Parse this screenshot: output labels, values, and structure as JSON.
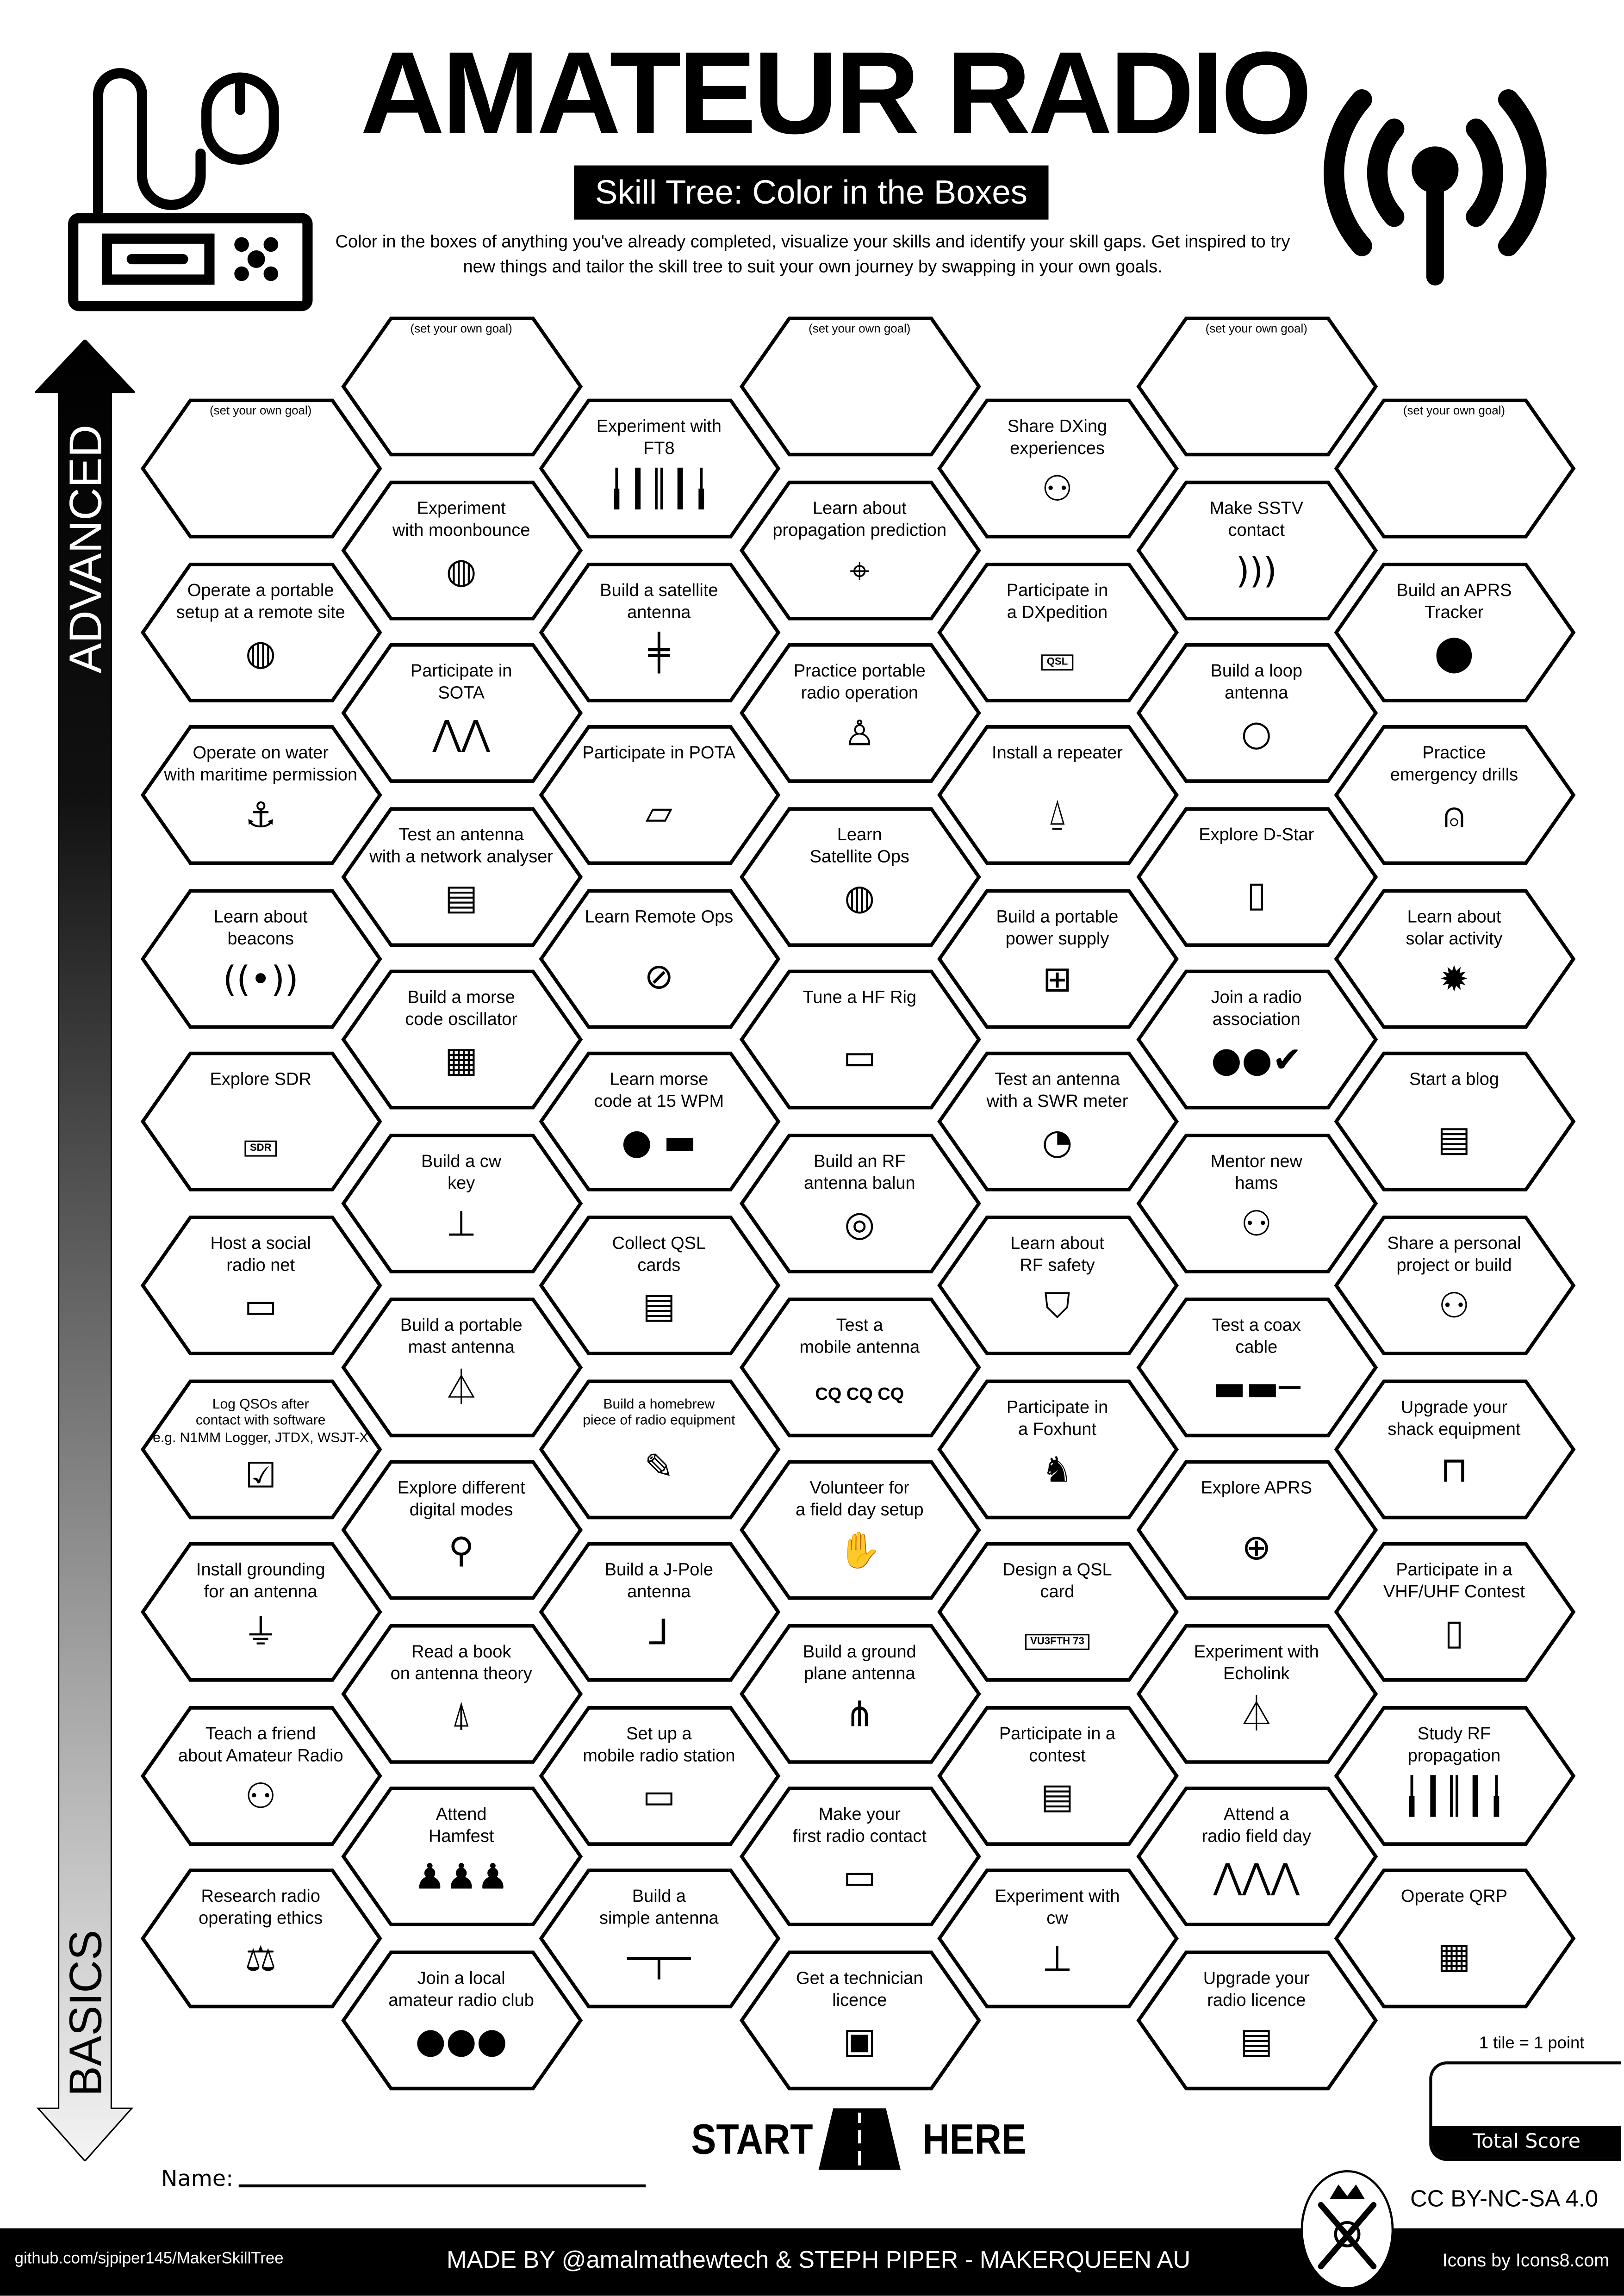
{
  "header": {
    "title": "AMATEUR RADIO",
    "subtitle": "Skill Tree: Color in the Boxes",
    "intro": "Color in the boxes of anything you've already completed, visualize your skills and identify your skill gaps.  Get inspired to try new things and tailor the skill tree to suit your own journey by swapping in your own goals."
  },
  "header_icons": {
    "left": "radio-transceiver-icon",
    "right": "radio-signal-icon"
  },
  "axis": {
    "top_label": "ADVANCED",
    "bottom_label": "BASICS"
  },
  "goal_placeholder": "(set your own goal)",
  "columns": [
    [
      {
        "label": "",
        "goal": true
      },
      {
        "label": "Operate a portable\nsetup at a remote site",
        "icon": "globe-pin-icon"
      },
      {
        "label": "Operate on water\nwith maritime permission",
        "icon": "anchor-icon"
      },
      {
        "label": "Learn about\nbeacons",
        "icon": "radio-signal-icon"
      },
      {
        "label": "Explore SDR",
        "icon": "sdr-dongle-icon",
        "icon_text": "SDR"
      },
      {
        "label": "Host a social\nradio net",
        "icon": "radio-transceiver-icon"
      },
      {
        "label": "Log QSOs after\ncontact with software\ne.g. N1MM Logger, JTDX, WSJT-X",
        "icon": "logbook-checklist-icon",
        "small": true
      },
      {
        "label": "Install grounding\nfor an antenna",
        "icon": "ground-symbol-icon"
      },
      {
        "label": "Teach a friend\nabout Amateur Radio",
        "icon": "people-at-desk-icon"
      },
      {
        "label": "Research radio\noperating ethics",
        "icon": "scales-of-justice-icon"
      }
    ],
    [
      {
        "label": "",
        "goal": true
      },
      {
        "label": "Experiment\nwith moonbounce",
        "icon": "moon-orbit-icon"
      },
      {
        "label": "Participate in\nSOTA",
        "icon": "mountains-icon"
      },
      {
        "label": "Test an antenna\nwith a network analyser",
        "icon": "network-analyser-icon"
      },
      {
        "label": "Build a morse\ncode oscillator",
        "icon": "circuit-board-icon"
      },
      {
        "label": "Build a cw\nkey",
        "icon": "morse-key-icon"
      },
      {
        "label": "Build a portable\nmast antenna",
        "icon": "mast-antenna-icon"
      },
      {
        "label": "Explore different\ndigital modes",
        "icon": "magnifier-icon"
      },
      {
        "label": "Read a book\non antenna theory",
        "icon": "antenna-tower-icon"
      },
      {
        "label": "Attend\nHamfest",
        "icon": "crowd-icon"
      },
      {
        "label": "Join a local\namateur radio club",
        "icon": "group-icon"
      }
    ],
    [
      {
        "label": "Experiment with\nFT8",
        "icon": "waveform-icon"
      },
      {
        "label": "Build a satellite\nantenna",
        "icon": "yagi-antenna-icon"
      },
      {
        "label": "Participate in POTA",
        "icon": "map-pin-icon"
      },
      {
        "label": "Learn Remote Ops",
        "icon": "compass-icon"
      },
      {
        "label": "Learn morse\ncode at 15 WPM",
        "icon": "dot-dash-icon"
      },
      {
        "label": "Collect QSL\ncards",
        "icon": "cards-stack-icon"
      },
      {
        "label": "Build a homebrew\npiece of radio equipment",
        "icon": "soldering-icon",
        "small": true
      },
      {
        "label": "Build a J-Pole\nantenna",
        "icon": "j-pole-icon"
      },
      {
        "label": "Set up a\nmobile radio station",
        "icon": "mobile-radio-icon"
      },
      {
        "label": "Build a\nsimple antenna",
        "icon": "dipole-icon"
      }
    ],
    [
      {
        "label": "",
        "goal": true
      },
      {
        "label": "Learn about\npropagation prediction",
        "icon": "telescope-icon"
      },
      {
        "label": "Practice portable\nradio operation",
        "icon": "hiker-radio-icon"
      },
      {
        "label": "Learn\nSatellite Ops",
        "icon": "globe-satellite-icon"
      },
      {
        "label": "Tune a HF Rig",
        "icon": "hf-rig-icon"
      },
      {
        "label": "Build an RF\nantenna balun",
        "icon": "toroid-icon"
      },
      {
        "label": "Test a\nmobile antenna",
        "icon": "cq-text-icon",
        "icon_text": "CQ CQ CQ"
      },
      {
        "label": "Volunteer for\na field day setup",
        "icon": "helping-hands-icon"
      },
      {
        "label": "Build a ground\nplane antenna",
        "icon": "ground-plane-icon"
      },
      {
        "label": "Make your\nfirst radio contact",
        "icon": "radio-microphone-icon"
      },
      {
        "label": "Get a technician\nlicence",
        "icon": "id-card-icon"
      }
    ],
    [
      {
        "label": "Share DXing\nexperiences",
        "icon": "people-at-desk-icon"
      },
      {
        "label": "Participate in\na DXpedition",
        "icon": "qsl-speech-icon",
        "icon_text": "QSL"
      },
      {
        "label": "Install a repeater",
        "icon": "repeater-tower-icon"
      },
      {
        "label": "Build a portable\npower supply",
        "icon": "power-supply-icon"
      },
      {
        "label": "Test an antenna\nwith a SWR meter",
        "icon": "swr-meter-icon"
      },
      {
        "label": "Learn about\nRF safety",
        "icon": "shield-check-icon"
      },
      {
        "label": "Participate in\na Foxhunt",
        "icon": "fox-icon"
      },
      {
        "label": "Design a QSL\ncard",
        "icon": "qsl-card-icon",
        "icon_text": "VU3FTH 73"
      },
      {
        "label": "Participate in a\ncontest",
        "icon": "certificate-icon"
      },
      {
        "label": "Experiment with\ncw",
        "icon": "morse-key-icon"
      }
    ],
    [
      {
        "label": "",
        "goal": true
      },
      {
        "label": "Make SSTV\ncontact",
        "icon": "signal-waves-icon"
      },
      {
        "label": "Build a loop\nantenna",
        "icon": "loop-antenna-icon"
      },
      {
        "label": "Explore D-Star",
        "icon": "walkie-talkie-icon"
      },
      {
        "label": "Join a radio\nassociation",
        "icon": "group-check-icon"
      },
      {
        "label": "Mentor new\nhams",
        "icon": "people-at-desk-icon"
      },
      {
        "label": "Test a coax\ncable",
        "icon": "coax-cable-icon"
      },
      {
        "label": "Explore APRS",
        "icon": "target-signal-icon"
      },
      {
        "label": "Experiment with\nEcholink",
        "icon": "lattice-tower-icon"
      },
      {
        "label": "Attend a\nradio field day",
        "icon": "mountain-range-icon"
      },
      {
        "label": "Upgrade your\nradio licence",
        "icon": "licence-document-icon"
      }
    ],
    [
      {
        "label": "",
        "goal": true
      },
      {
        "label": "Build an APRS\nTracker",
        "icon": "location-pin-icon"
      },
      {
        "label": "Practice\nemergency drills",
        "icon": "alarm-light-icon"
      },
      {
        "label": "Learn about\nsolar activity",
        "icon": "sun-burst-icon"
      },
      {
        "label": "Start a blog",
        "icon": "web-page-icon"
      },
      {
        "label": "Share a personal\nproject or build",
        "icon": "people-at-desk-icon"
      },
      {
        "label": "Upgrade your\nshack equipment",
        "icon": "desk-equipment-icon"
      },
      {
        "label": "Participate in a\nVHF/UHF Contest",
        "icon": "walkie-talkie-icon"
      },
      {
        "label": "Study RF\npropagation",
        "icon": "waveform-icon"
      },
      {
        "label": "Operate QRP",
        "icon": "circuit-board-icon"
      }
    ]
  ],
  "footer_area": {
    "start": "START",
    "here": "HERE",
    "name_label": "Name:",
    "tile_point": "1 tile = 1 point",
    "total_score": "Total Score",
    "license": "CC BY-NC-SA 4.0",
    "github": "github.com/sjpiper145/MakerSkillTree",
    "made_by": "MADE BY @amalmathewtech & STEPH PIPER  -  MAKERQUEEN AU",
    "icons_credit": "Icons by Icons8.com"
  }
}
